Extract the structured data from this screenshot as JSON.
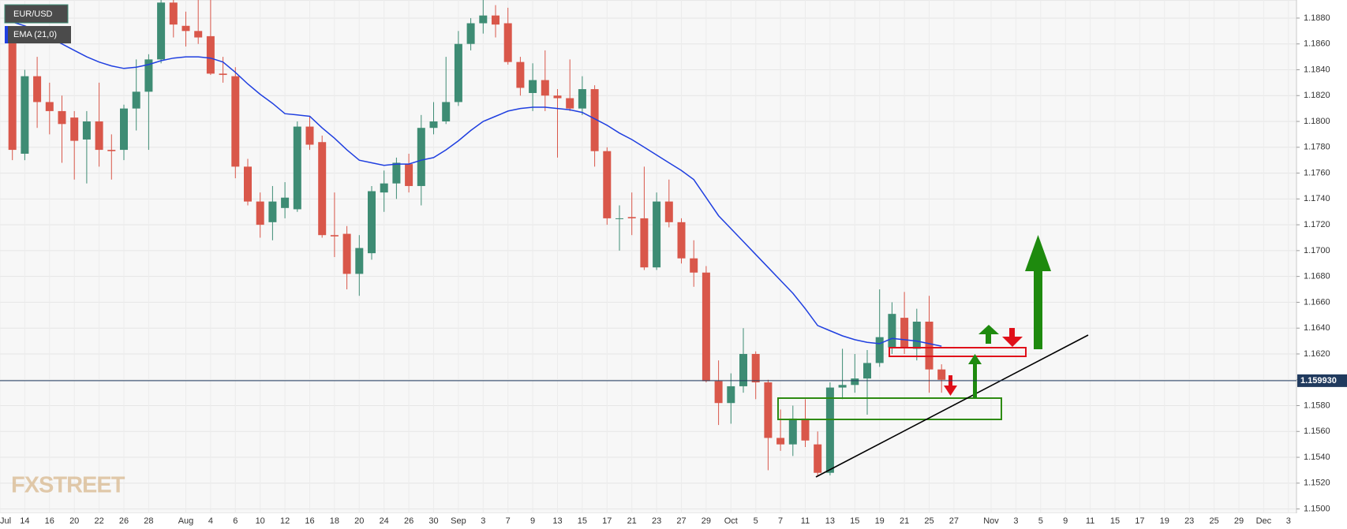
{
  "chart_data": {
    "type": "candlestick",
    "categories": [
      "Jul",
      null,
      "14",
      null,
      "16",
      null,
      "20",
      null,
      "22",
      null,
      "26",
      null,
      "28",
      null,
      null,
      "Aug",
      null,
      "4",
      null,
      "6",
      null,
      "10",
      null,
      "12",
      null,
      "16",
      null,
      "18",
      null,
      "20",
      null,
      "24",
      null,
      "26",
      null,
      "30",
      null,
      "Sep",
      null,
      "3",
      null,
      "7",
      null,
      "9",
      null,
      "13",
      null,
      "15",
      null,
      "17",
      null,
      "21",
      null,
      "23",
      null,
      "27",
      null,
      "29",
      null,
      "Oct",
      null,
      "5",
      null,
      "7",
      null,
      "11",
      null,
      "13",
      null,
      "15",
      null,
      "19",
      null,
      "21",
      null,
      "25",
      null,
      "27",
      null,
      null,
      "Nov",
      null,
      "3",
      null,
      "5",
      null,
      "9",
      null,
      "11",
      null,
      "15",
      null,
      "17",
      null,
      "19",
      null,
      "23",
      null,
      "25",
      null,
      "29",
      null,
      "Dec",
      null,
      "3"
    ],
    "series": [
      {
        "name": "EUR/USD",
        "up_color": "#3e8c74",
        "down_color": "#d9574a",
        "open": [
          null,
          1.1862,
          1.1775,
          1.1835,
          1.1815,
          1.1808,
          1.1803,
          1.1786,
          1.18,
          1.1778,
          1.1778,
          1.181,
          1.1823,
          1.1848,
          1.1892,
          1.1874,
          1.187,
          1.1866,
          1.1837,
          1.1835,
          1.1765,
          1.1738,
          1.1722,
          1.1733,
          1.1732,
          1.1796,
          1.1784,
          1.1712,
          1.1713,
          1.1682,
          1.1698,
          1.1745,
          1.1752,
          1.1767,
          1.175,
          1.1795,
          1.18,
          1.1815,
          1.186,
          1.1876,
          1.1882,
          1.1876,
          1.1846,
          1.1822,
          1.1832,
          1.182,
          1.1818,
          1.181,
          1.1825,
          1.1777,
          1.1725,
          1.1726,
          1.1725,
          1.1687,
          1.1738,
          1.1722,
          1.1694,
          1.1683,
          1.1599,
          1.1582,
          1.1595,
          1.162,
          1.1598,
          1.1555,
          1.155,
          1.157,
          1.155,
          1.1528,
          1.1594,
          1.1596,
          1.1601,
          1.1613,
          1.1625,
          1.1648,
          1.1624,
          1.1645,
          1.1608,
          null,
          null,
          null,
          null,
          null,
          null,
          null,
          null,
          null,
          null,
          null,
          null,
          null,
          null,
          null,
          null,
          null,
          null,
          null,
          null,
          null,
          null,
          null,
          null,
          null,
          null,
          null,
          null
        ],
        "high": [
          null,
          1.1872,
          1.184,
          1.185,
          1.183,
          1.182,
          1.1808,
          1.1808,
          1.183,
          1.179,
          1.1813,
          1.1848,
          1.1852,
          1.19,
          1.1905,
          1.1885,
          1.1895,
          1.19,
          1.185,
          1.1842,
          1.1771,
          1.1745,
          1.175,
          1.1753,
          1.18,
          1.1804,
          1.1789,
          1.1745,
          1.1719,
          1.1712,
          1.175,
          1.1762,
          1.1772,
          1.1775,
          1.1805,
          1.1815,
          1.185,
          1.187,
          1.188,
          1.1908,
          1.189,
          1.1888,
          1.185,
          1.1845,
          1.1855,
          1.1825,
          1.1848,
          1.1835,
          1.1828,
          1.178,
          1.1735,
          1.1745,
          1.1765,
          1.1745,
          1.1755,
          1.1725,
          1.1708,
          1.1688,
          1.1615,
          1.1605,
          1.164,
          1.1622,
          1.16,
          1.1577,
          1.158,
          1.1585,
          1.156,
          1.1598,
          1.1624,
          1.162,
          1.1623,
          1.167,
          1.166,
          1.1668,
          1.1655,
          1.1665,
          1.1612,
          null,
          null,
          null,
          null,
          null,
          null,
          null,
          null,
          null,
          null,
          null,
          null,
          null,
          null,
          null,
          null,
          null,
          null,
          null,
          null,
          null,
          null,
          null,
          null,
          null,
          null,
          null,
          null
        ],
        "low": [
          null,
          1.177,
          1.177,
          1.1795,
          1.179,
          1.1768,
          1.1755,
          1.1752,
          1.1765,
          1.1755,
          1.177,
          1.1793,
          1.1778,
          1.1845,
          1.1865,
          1.1858,
          1.186,
          1.1836,
          1.183,
          1.1756,
          1.1735,
          1.171,
          1.1708,
          1.1725,
          1.173,
          1.1778,
          1.171,
          1.1695,
          1.167,
          1.1665,
          1.1693,
          1.173,
          1.174,
          1.1745,
          1.1735,
          1.179,
          1.1798,
          1.1812,
          1.1855,
          1.1868,
          1.1865,
          1.1844,
          1.182,
          1.1808,
          1.1808,
          1.1772,
          1.1808,
          1.1805,
          1.1765,
          1.172,
          1.17,
          1.1712,
          1.1685,
          1.1685,
          1.1718,
          1.169,
          1.1672,
          1.1598,
          1.1565,
          1.1566,
          1.159,
          1.1585,
          1.153,
          1.1545,
          1.1541,
          1.1548,
          1.1525,
          1.1526,
          1.1585,
          1.159,
          1.1573,
          1.161,
          1.162,
          1.162,
          1.1615,
          1.159,
          1.159,
          null,
          null,
          null,
          null,
          null,
          null,
          null,
          null,
          null,
          null,
          null,
          null,
          null,
          null,
          null,
          null,
          null,
          null,
          null,
          null,
          null,
          null,
          null,
          null,
          null,
          null,
          null,
          null
        ],
        "close": [
          null,
          1.1778,
          1.1835,
          1.1815,
          1.1808,
          1.1798,
          1.1785,
          1.18,
          1.1778,
          1.1777,
          1.181,
          1.1823,
          1.1848,
          1.1892,
          1.1875,
          1.187,
          1.1865,
          1.1837,
          1.1836,
          1.1765,
          1.1738,
          1.172,
          1.1738,
          1.1741,
          1.1796,
          1.1782,
          1.1712,
          1.1711,
          1.1682,
          1.1702,
          1.1746,
          1.1752,
          1.1768,
          1.175,
          1.1795,
          1.18,
          1.1815,
          1.186,
          1.1876,
          1.1882,
          1.1875,
          1.1846,
          1.1826,
          1.1832,
          1.182,
          1.1818,
          1.181,
          1.1825,
          1.1777,
          1.1725,
          1.1725,
          1.1725,
          1.1687,
          1.1738,
          1.1722,
          1.1694,
          1.1683,
          1.1599,
          1.1582,
          1.1595,
          1.162,
          1.1598,
          1.1555,
          1.155,
          1.157,
          1.1553,
          1.1528,
          1.1594,
          1.1596,
          1.1601,
          1.1613,
          1.1633,
          1.1651,
          1.1625,
          1.1645,
          1.1608,
          1.16,
          null,
          null,
          null,
          null,
          null,
          null,
          null,
          null,
          null,
          null,
          null,
          null,
          null,
          null,
          null,
          null,
          null,
          null,
          null,
          null,
          null,
          null,
          null,
          null,
          null,
          null,
          null,
          null
        ]
      },
      {
        "name": "EMA (21,0)",
        "color": "#1f3fe0",
        "values": [
          null,
          1.1877,
          1.1874,
          1.187,
          1.1865,
          1.186,
          1.1855,
          1.185,
          1.1846,
          1.1843,
          1.1841,
          1.1842,
          1.1844,
          1.1847,
          1.1849,
          1.185,
          1.185,
          1.1849,
          1.1846,
          1.1838,
          1.1829,
          1.1821,
          1.1814,
          1.1806,
          1.1805,
          1.1804,
          1.1795,
          1.1787,
          1.1778,
          1.177,
          1.1768,
          1.1766,
          1.1767,
          1.1767,
          1.177,
          1.1772,
          1.1778,
          1.1785,
          1.1793,
          1.18,
          1.1804,
          1.1808,
          1.181,
          1.1811,
          1.1811,
          1.181,
          1.1809,
          1.1807,
          1.1802,
          1.1797,
          1.1791,
          1.1786,
          1.178,
          1.1774,
          1.1768,
          1.1762,
          1.1755,
          1.1741,
          1.1727,
          1.1717,
          1.1707,
          1.1697,
          1.1687,
          1.1677,
          1.1667,
          1.1655,
          1.1642,
          1.1638,
          1.1634,
          1.1631,
          1.1629,
          1.1628,
          1.1632,
          1.1631,
          1.163,
          1.1628,
          1.1626,
          null,
          null,
          null,
          null,
          null,
          null,
          null,
          null,
          null,
          null,
          null,
          null,
          null,
          null,
          null,
          null,
          null,
          null,
          null,
          null,
          null,
          null,
          null,
          null,
          null,
          null,
          null,
          null
        ]
      }
    ],
    "ylim": [
      1.14967,
      1.1894
    ],
    "yticks": [
      {
        "value": 1.15,
        "label": "1.1500"
      },
      {
        "value": 1.152,
        "label": "1.1520"
      },
      {
        "value": 1.154,
        "label": "1.1540"
      },
      {
        "value": 1.156,
        "label": "1.1560"
      },
      {
        "value": 1.158,
        "label": "1.1580"
      },
      {
        "value": 1.16,
        "label": "1.1600"
      },
      {
        "value": 1.162,
        "label": "1.1620"
      },
      {
        "value": 1.164,
        "label": "1.1640"
      },
      {
        "value": 1.166,
        "label": "1.1660"
      },
      {
        "value": 1.168,
        "label": "1.1680"
      },
      {
        "value": 1.17,
        "label": "1.1700"
      },
      {
        "value": 1.172,
        "label": "1.1720"
      },
      {
        "value": 1.174,
        "label": "1.1740"
      },
      {
        "value": 1.176,
        "label": "1.1760"
      },
      {
        "value": 1.178,
        "label": "1.1780"
      },
      {
        "value": 1.18,
        "label": "1.1800"
      },
      {
        "value": 1.182,
        "label": "1.1820"
      },
      {
        "value": 1.184,
        "label": "1.1840"
      },
      {
        "value": 1.186,
        "label": "1.1860"
      },
      {
        "value": 1.188,
        "label": "1.1880"
      }
    ],
    "grid": true,
    "last_price": {
      "value": 1.15993,
      "label": "1.159930",
      "color": "#203a5e"
    },
    "watermark": "FXSTREET"
  }
}
